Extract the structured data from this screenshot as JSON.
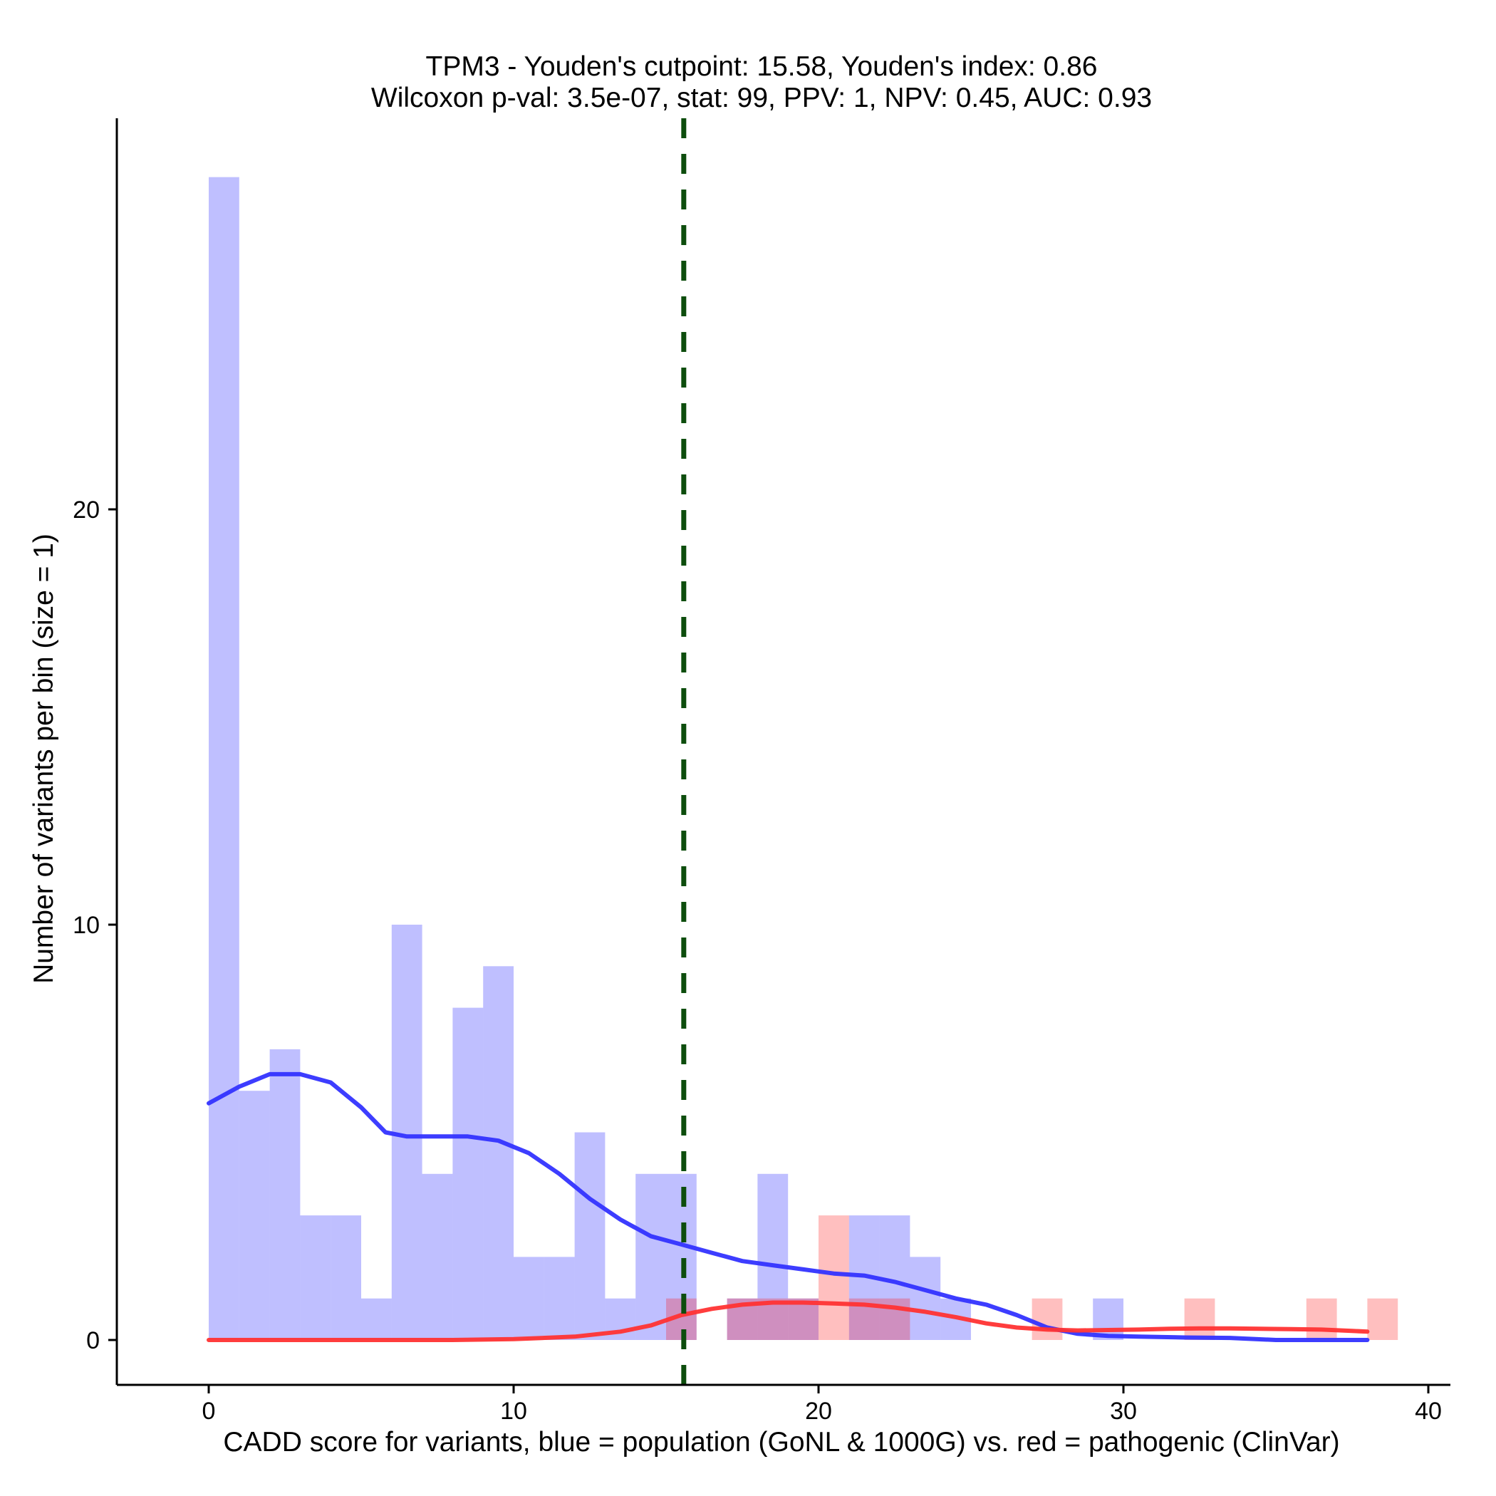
{
  "chart_data": {
    "type": "histogram",
    "title_line1": "TPM3 - Youden's cutpoint: 15.58, Youden's index: 0.86",
    "title_line2": "Wilcoxon p-val: 3.5e-07, stat: 99, PPV: 1, NPV: 0.45, AUC: 0.93",
    "xlabel": "CADD score for variants, blue = population (GoNL & 1000G) vs. red = pathogenic (ClinVar)",
    "ylabel": "Number of variants per bin (size = 1)",
    "xlim": [
      -3,
      41
    ],
    "ylim": [
      -1.4,
      29.5
    ],
    "xticks": [
      0,
      10,
      20,
      30,
      40
    ],
    "yticks": [
      0,
      10,
      20
    ],
    "bin_width": 1,
    "cutpoint": 15.58,
    "series": [
      {
        "name": "population (GoNL & 1000G)",
        "color": "#3333ff",
        "bins": [
          {
            "x": 0,
            "count": 28
          },
          {
            "x": 1,
            "count": 6
          },
          {
            "x": 2,
            "count": 7
          },
          {
            "x": 3,
            "count": 3
          },
          {
            "x": 4,
            "count": 3
          },
          {
            "x": 5,
            "count": 1
          },
          {
            "x": 6,
            "count": 10
          },
          {
            "x": 7,
            "count": 4
          },
          {
            "x": 8,
            "count": 8
          },
          {
            "x": 9,
            "count": 9
          },
          {
            "x": 10,
            "count": 2
          },
          {
            "x": 11,
            "count": 2
          },
          {
            "x": 12,
            "count": 5
          },
          {
            "x": 13,
            "count": 1
          },
          {
            "x": 14,
            "count": 4
          },
          {
            "x": 15,
            "count": 4
          },
          {
            "x": 17,
            "count": 1
          },
          {
            "x": 18,
            "count": 4
          },
          {
            "x": 19,
            "count": 1
          },
          {
            "x": 21,
            "count": 3
          },
          {
            "x": 22,
            "count": 3
          },
          {
            "x": 23,
            "count": 2
          },
          {
            "x": 24,
            "count": 1
          },
          {
            "x": 29,
            "count": 1
          }
        ],
        "density_scaled": [
          [
            0,
            5.7
          ],
          [
            1,
            6.1
          ],
          [
            2,
            6.4
          ],
          [
            3,
            6.4
          ],
          [
            4,
            6.2
          ],
          [
            5,
            5.6
          ],
          [
            5.8,
            5.0
          ],
          [
            6.5,
            4.9
          ],
          [
            7.5,
            4.9
          ],
          [
            8.5,
            4.9
          ],
          [
            9.5,
            4.8
          ],
          [
            10.5,
            4.5
          ],
          [
            11.5,
            4.0
          ],
          [
            12.5,
            3.4
          ],
          [
            13.5,
            2.9
          ],
          [
            14.5,
            2.5
          ],
          [
            15.5,
            2.3
          ],
          [
            16.5,
            2.1
          ],
          [
            17.5,
            1.9
          ],
          [
            18.5,
            1.8
          ],
          [
            19.5,
            1.7
          ],
          [
            20.5,
            1.6
          ],
          [
            21.5,
            1.55
          ],
          [
            22.5,
            1.4
          ],
          [
            23.5,
            1.2
          ],
          [
            24.5,
            1.0
          ],
          [
            25.5,
            0.85
          ],
          [
            26.5,
            0.6
          ],
          [
            27.5,
            0.3
          ],
          [
            28.5,
            0.15
          ],
          [
            29.5,
            0.1
          ],
          [
            30.5,
            0.08
          ],
          [
            32,
            0.06
          ],
          [
            33.5,
            0.05
          ],
          [
            35,
            0.0
          ],
          [
            38,
            0.0
          ]
        ]
      },
      {
        "name": "pathogenic (ClinVar)",
        "color": "#ff3333",
        "bins": [
          {
            "x": 15,
            "count": 1
          },
          {
            "x": 17,
            "count": 1
          },
          {
            "x": 18,
            "count": 1
          },
          {
            "x": 19,
            "count": 1
          },
          {
            "x": 20,
            "count": 3
          },
          {
            "x": 21,
            "count": 1
          },
          {
            "x": 22,
            "count": 1
          },
          {
            "x": 27,
            "count": 1
          },
          {
            "x": 32,
            "count": 1
          },
          {
            "x": 36,
            "count": 1
          },
          {
            "x": 38,
            "count": 1
          }
        ],
        "density_scaled": [
          [
            0,
            0.0
          ],
          [
            8,
            0.0
          ],
          [
            10,
            0.02
          ],
          [
            12,
            0.08
          ],
          [
            13.5,
            0.2
          ],
          [
            14.5,
            0.35
          ],
          [
            15.5,
            0.6
          ],
          [
            16.5,
            0.75
          ],
          [
            17.5,
            0.85
          ],
          [
            18.5,
            0.9
          ],
          [
            19.5,
            0.9
          ],
          [
            20.5,
            0.88
          ],
          [
            21.5,
            0.85
          ],
          [
            22.5,
            0.78
          ],
          [
            23.5,
            0.68
          ],
          [
            24.5,
            0.55
          ],
          [
            25.5,
            0.4
          ],
          [
            26.5,
            0.3
          ],
          [
            27.5,
            0.25
          ],
          [
            28.5,
            0.23
          ],
          [
            29.5,
            0.24
          ],
          [
            30.5,
            0.25
          ],
          [
            31.5,
            0.27
          ],
          [
            32.5,
            0.28
          ],
          [
            33.5,
            0.28
          ],
          [
            34.5,
            0.27
          ],
          [
            35.5,
            0.26
          ],
          [
            36.5,
            0.25
          ],
          [
            37.5,
            0.22
          ],
          [
            38,
            0.2
          ]
        ]
      }
    ]
  }
}
